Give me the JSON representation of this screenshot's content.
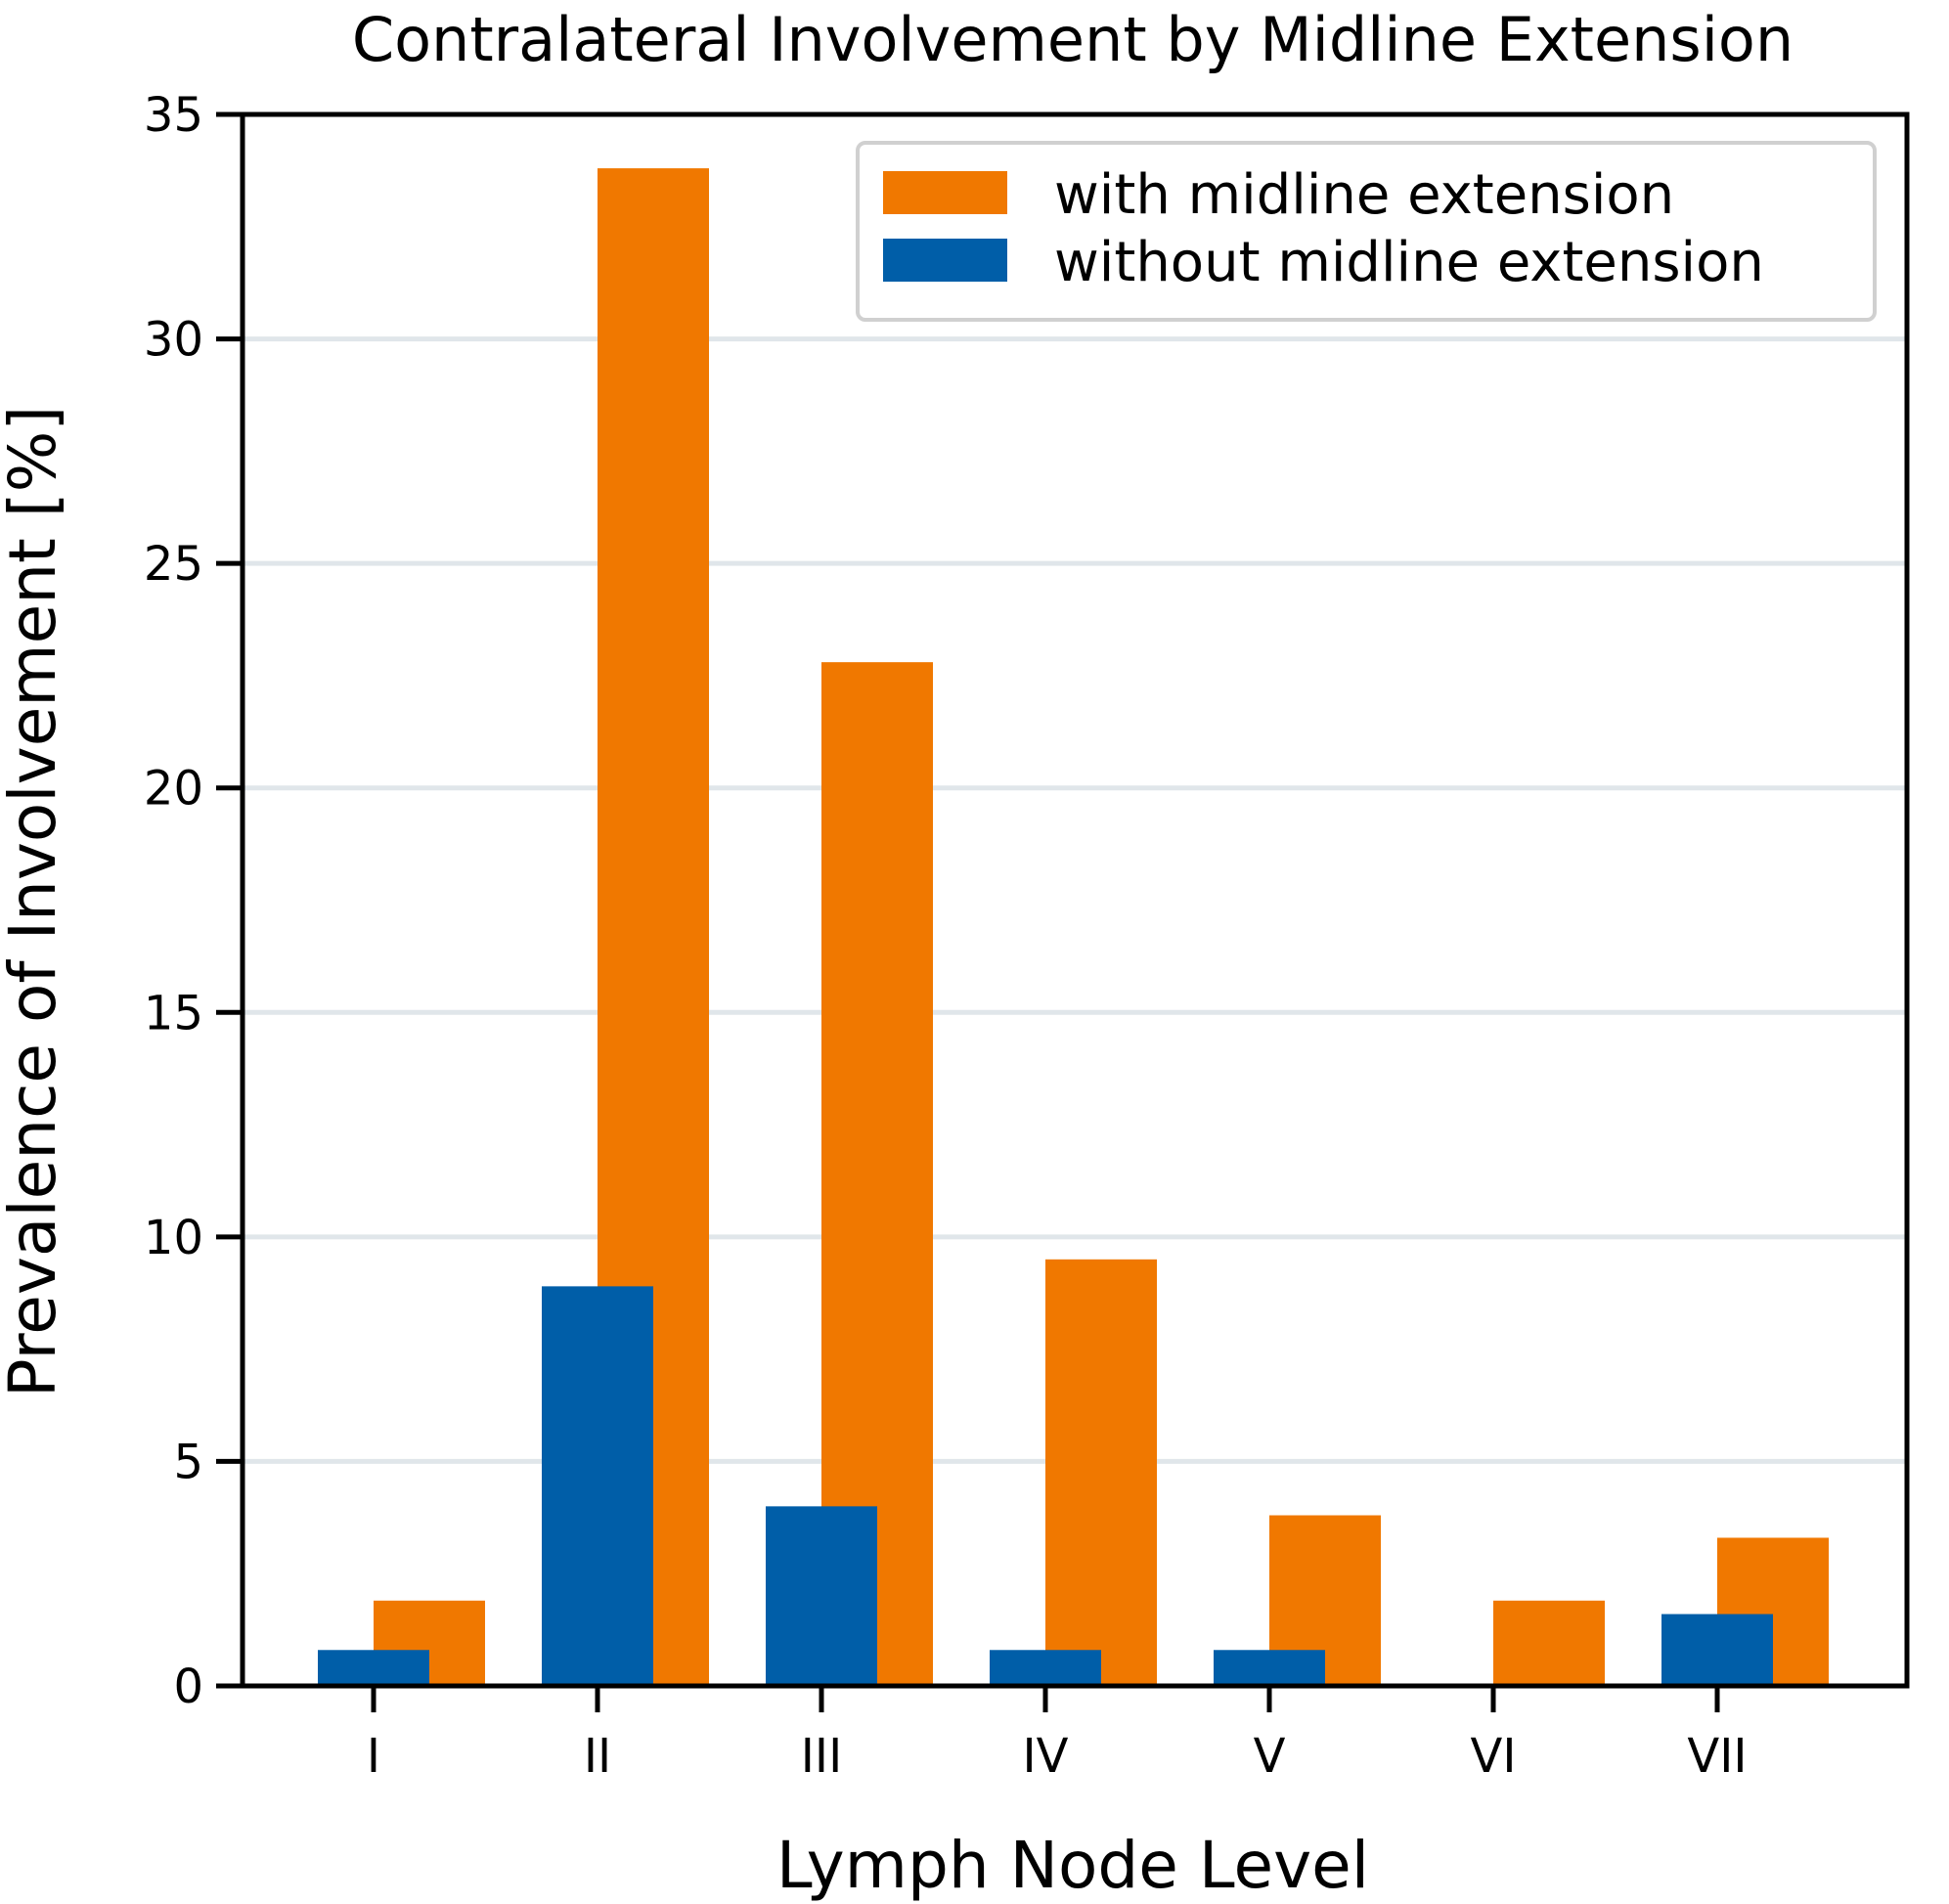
{
  "chart_data": {
    "type": "bar",
    "title": "Contralateral Involvement by Midline Extension",
    "xlabel": "Lymph Node Level",
    "ylabel": "Prevalence of Involvement [%]",
    "categories": [
      "I",
      "II",
      "III",
      "IV",
      "V",
      "VI",
      "VII"
    ],
    "series": [
      {
        "name": "with midline extension",
        "color": "#F07800",
        "values": [
          1.9,
          33.8,
          22.8,
          9.5,
          3.8,
          1.9,
          3.3
        ]
      },
      {
        "name": "without midline extension",
        "color": "#005EA8",
        "values": [
          0.8,
          8.9,
          4.0,
          0.8,
          0.8,
          0.0,
          1.6
        ]
      }
    ],
    "ylim": [
      0,
      35
    ],
    "yticks": [
      0,
      5,
      10,
      15,
      20,
      25,
      30,
      35
    ],
    "grid": "horizontal",
    "legend_position": "top-right"
  }
}
